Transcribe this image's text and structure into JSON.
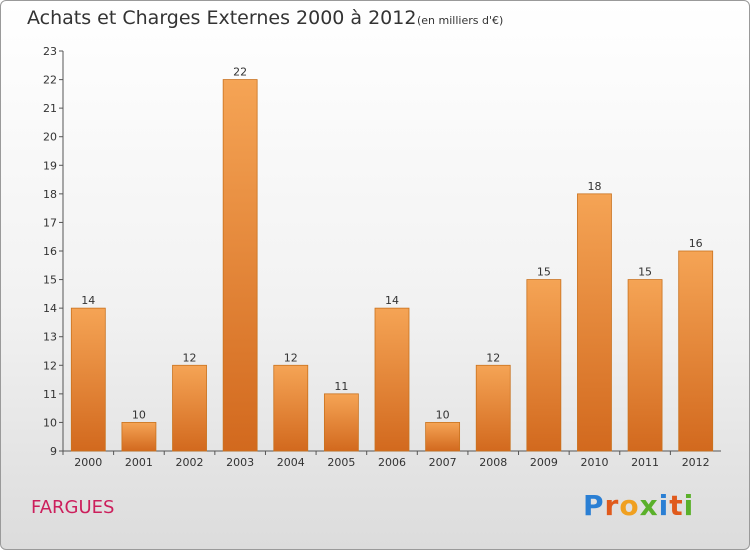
{
  "header": {
    "title": "Achats et Charges Externes 2000 à 2012",
    "subtitle": "(en milliers d'€)"
  },
  "footer": {
    "commune": "FARGUES",
    "logo_text": "Proxiti"
  },
  "colors": {
    "bar_top": "#f5a455",
    "bar_bottom": "#d2691e",
    "commune": "#cc1f5c"
  },
  "chart_data": {
    "type": "bar",
    "title": "Achats et Charges Externes 2000 à 2012",
    "subtitle": "(en milliers d'€)",
    "xlabel": "",
    "ylabel": "",
    "categories": [
      "2000",
      "2001",
      "2002",
      "2003",
      "2004",
      "2005",
      "2006",
      "2007",
      "2008",
      "2009",
      "2010",
      "2011",
      "2012"
    ],
    "values": [
      14,
      10,
      12,
      22,
      12,
      11,
      14,
      10,
      12,
      15,
      18,
      15,
      16
    ],
    "ylim": [
      9,
      23
    ],
    "yticks": [
      9,
      10,
      11,
      12,
      13,
      14,
      15,
      16,
      17,
      18,
      19,
      20,
      21,
      22,
      23
    ],
    "grid": false
  }
}
